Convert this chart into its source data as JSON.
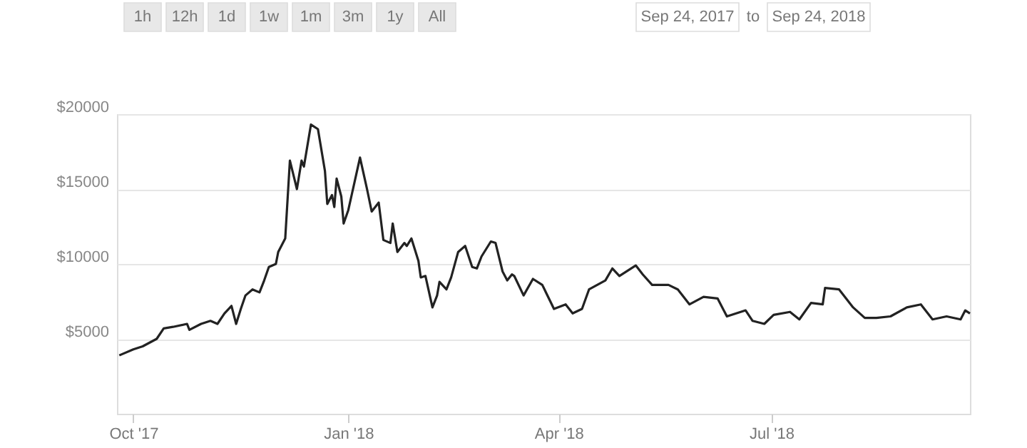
{
  "chart_data": {
    "type": "line",
    "annotations": [
      "1h",
      "12h",
      "1d",
      "1w",
      "1m",
      "3m",
      "1y",
      "All",
      "Sep 24, 2017",
      "to",
      "Sep 24, 2018"
    ],
    "x": [
      "2017-09-25",
      "2017-10-01",
      "2017-10-05",
      "2017-10-11",
      "2017-10-14",
      "2017-10-18",
      "2017-10-24",
      "2017-10-25",
      "2017-10-30",
      "2017-11-03",
      "2017-11-06",
      "2017-11-09",
      "2017-11-12",
      "2017-11-14",
      "2017-11-16",
      "2017-11-18",
      "2017-11-21",
      "2017-11-24",
      "2017-11-26",
      "2017-11-28",
      "2017-12-01",
      "2017-12-02",
      "2017-12-05",
      "2017-12-07",
      "2017-12-10",
      "2017-12-12",
      "2017-12-13",
      "2017-12-16",
      "2017-12-19",
      "2017-12-22",
      "2017-12-23",
      "2017-12-25",
      "2017-12-26",
      "2017-12-27",
      "2017-12-29",
      "2017-12-30",
      "2018-01-01",
      "2018-01-03",
      "2018-01-06",
      "2018-01-09",
      "2018-01-11",
      "2018-01-14",
      "2018-01-16",
      "2018-01-19",
      "2018-01-20",
      "2018-01-22",
      "2018-01-25",
      "2018-01-26",
      "2018-01-28",
      "2018-01-31",
      "2018-02-01",
      "2018-02-03",
      "2018-02-06",
      "2018-02-08",
      "2018-02-09",
      "2018-02-12",
      "2018-02-14",
      "2018-02-17",
      "2018-02-20",
      "2018-02-23",
      "2018-02-25",
      "2018-02-27",
      "2018-03-03",
      "2018-03-05",
      "2018-03-08",
      "2018-03-10",
      "2018-03-12",
      "2018-03-13",
      "2018-03-17",
      "2018-03-21",
      "2018-03-25",
      "2018-03-30",
      "2018-04-04",
      "2018-04-07",
      "2018-04-11",
      "2018-04-14",
      "2018-04-21",
      "2018-04-24",
      "2018-04-27",
      "2018-05-04",
      "2018-05-07",
      "2018-05-11",
      "2018-05-18",
      "2018-05-22",
      "2018-05-27",
      "2018-06-02",
      "2018-06-08",
      "2018-06-12",
      "2018-06-20",
      "2018-06-23",
      "2018-06-28",
      "2018-07-02",
      "2018-07-09",
      "2018-07-13",
      "2018-07-18",
      "2018-07-23",
      "2018-07-24",
      "2018-07-30",
      "2018-08-05",
      "2018-08-10",
      "2018-08-15",
      "2018-08-21",
      "2018-08-28",
      "2018-09-03",
      "2018-09-08",
      "2018-09-14",
      "2018-09-20",
      "2018-09-22",
      "2018-09-24"
    ],
    "series": [
      {
        "color": "#222222",
        "values": [
          3900,
          4300,
          4500,
          5000,
          5700,
          5800,
          6000,
          5600,
          6000,
          6200,
          6000,
          6700,
          7200,
          6000,
          7000,
          7900,
          8300,
          8100,
          8900,
          9800,
          10000,
          10800,
          11700,
          16900,
          15000,
          16900,
          16500,
          19300,
          19000,
          16200,
          14000,
          14600,
          13800,
          15700,
          14500,
          12700,
          13600,
          15000,
          17100,
          15000,
          13500,
          14100,
          11600,
          11400,
          12700,
          10800,
          11400,
          11200,
          11700,
          10200,
          9100,
          9200,
          7100,
          7900,
          8800,
          8300,
          9100,
          10800,
          11200,
          9800,
          9700,
          10500,
          11500,
          11400,
          9500,
          8900,
          9300,
          9200,
          7900,
          9000,
          8600,
          7000,
          7300,
          6700,
          7000,
          8300,
          8900,
          9700,
          9200,
          9900,
          9300,
          8600,
          8600,
          8300,
          7300,
          7800,
          7700,
          6500,
          6900,
          6200,
          6000,
          6600,
          6800,
          6300,
          7400,
          7300,
          8400,
          8300,
          7100,
          6400,
          6400,
          6500,
          7100,
          7300,
          6300,
          6500,
          6300,
          6900,
          6700
        ]
      }
    ],
    "xlim": [
      "2017-09-24",
      "2018-09-24"
    ],
    "xticks": [
      {
        "value": "2017-10-01",
        "label": "Oct '17"
      },
      {
        "value": "2018-01-01",
        "label": "Jan '18"
      },
      {
        "value": "2018-04-01",
        "label": "Apr '18"
      },
      {
        "value": "2018-07-01",
        "label": "Jul '18"
      }
    ],
    "ylim": [
      0,
      20000
    ],
    "yticks": [
      {
        "value": 5000,
        "label": "$5000"
      },
      {
        "value": 10000,
        "label": "$10000"
      },
      {
        "value": 15000,
        "label": "$15000"
      },
      {
        "value": 20000,
        "label": "$20000"
      }
    ],
    "grid": "y",
    "marker": "none",
    "line_style": "solid"
  }
}
